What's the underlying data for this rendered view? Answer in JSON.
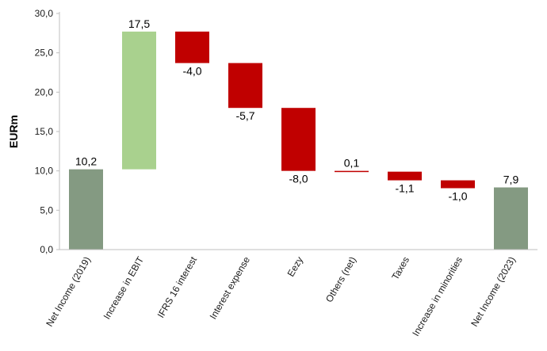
{
  "chart_data": {
    "type": "bar",
    "subtype": "waterfall",
    "title": "",
    "ylabel": "EURm",
    "xlabel": "",
    "ylim": [
      0,
      30
    ],
    "yticks": [
      "0,0",
      "5,0",
      "10,0",
      "15,0",
      "20,0",
      "25,0",
      "30,0"
    ],
    "grid": false,
    "legend": "none",
    "categories": [
      "Net Income (2019)",
      "Increase in EBIT",
      "IFRS 16 interest",
      "Interest expense",
      "Eezy",
      "Others (net)",
      "Taxes",
      "Increase in minorities",
      "Net Income (2023)"
    ],
    "values": [
      10.2,
      17.5,
      -4.0,
      -5.7,
      -8.0,
      0.1,
      -1.1,
      -1.0,
      7.9
    ],
    "kinds": [
      "total",
      "increase",
      "decrease",
      "decrease",
      "decrease",
      "decrease",
      "decrease",
      "decrease",
      "total"
    ],
    "value_labels": [
      "10,2",
      "17,5",
      "-4,0",
      "-5,7",
      "-8,0",
      "0,1",
      "-1,1",
      "-1,0",
      "7,9"
    ],
    "colors": {
      "total": "#849a82",
      "increase": "#a9d18e",
      "decrease": "#c00000",
      "axis": "#bfbfbf"
    }
  }
}
